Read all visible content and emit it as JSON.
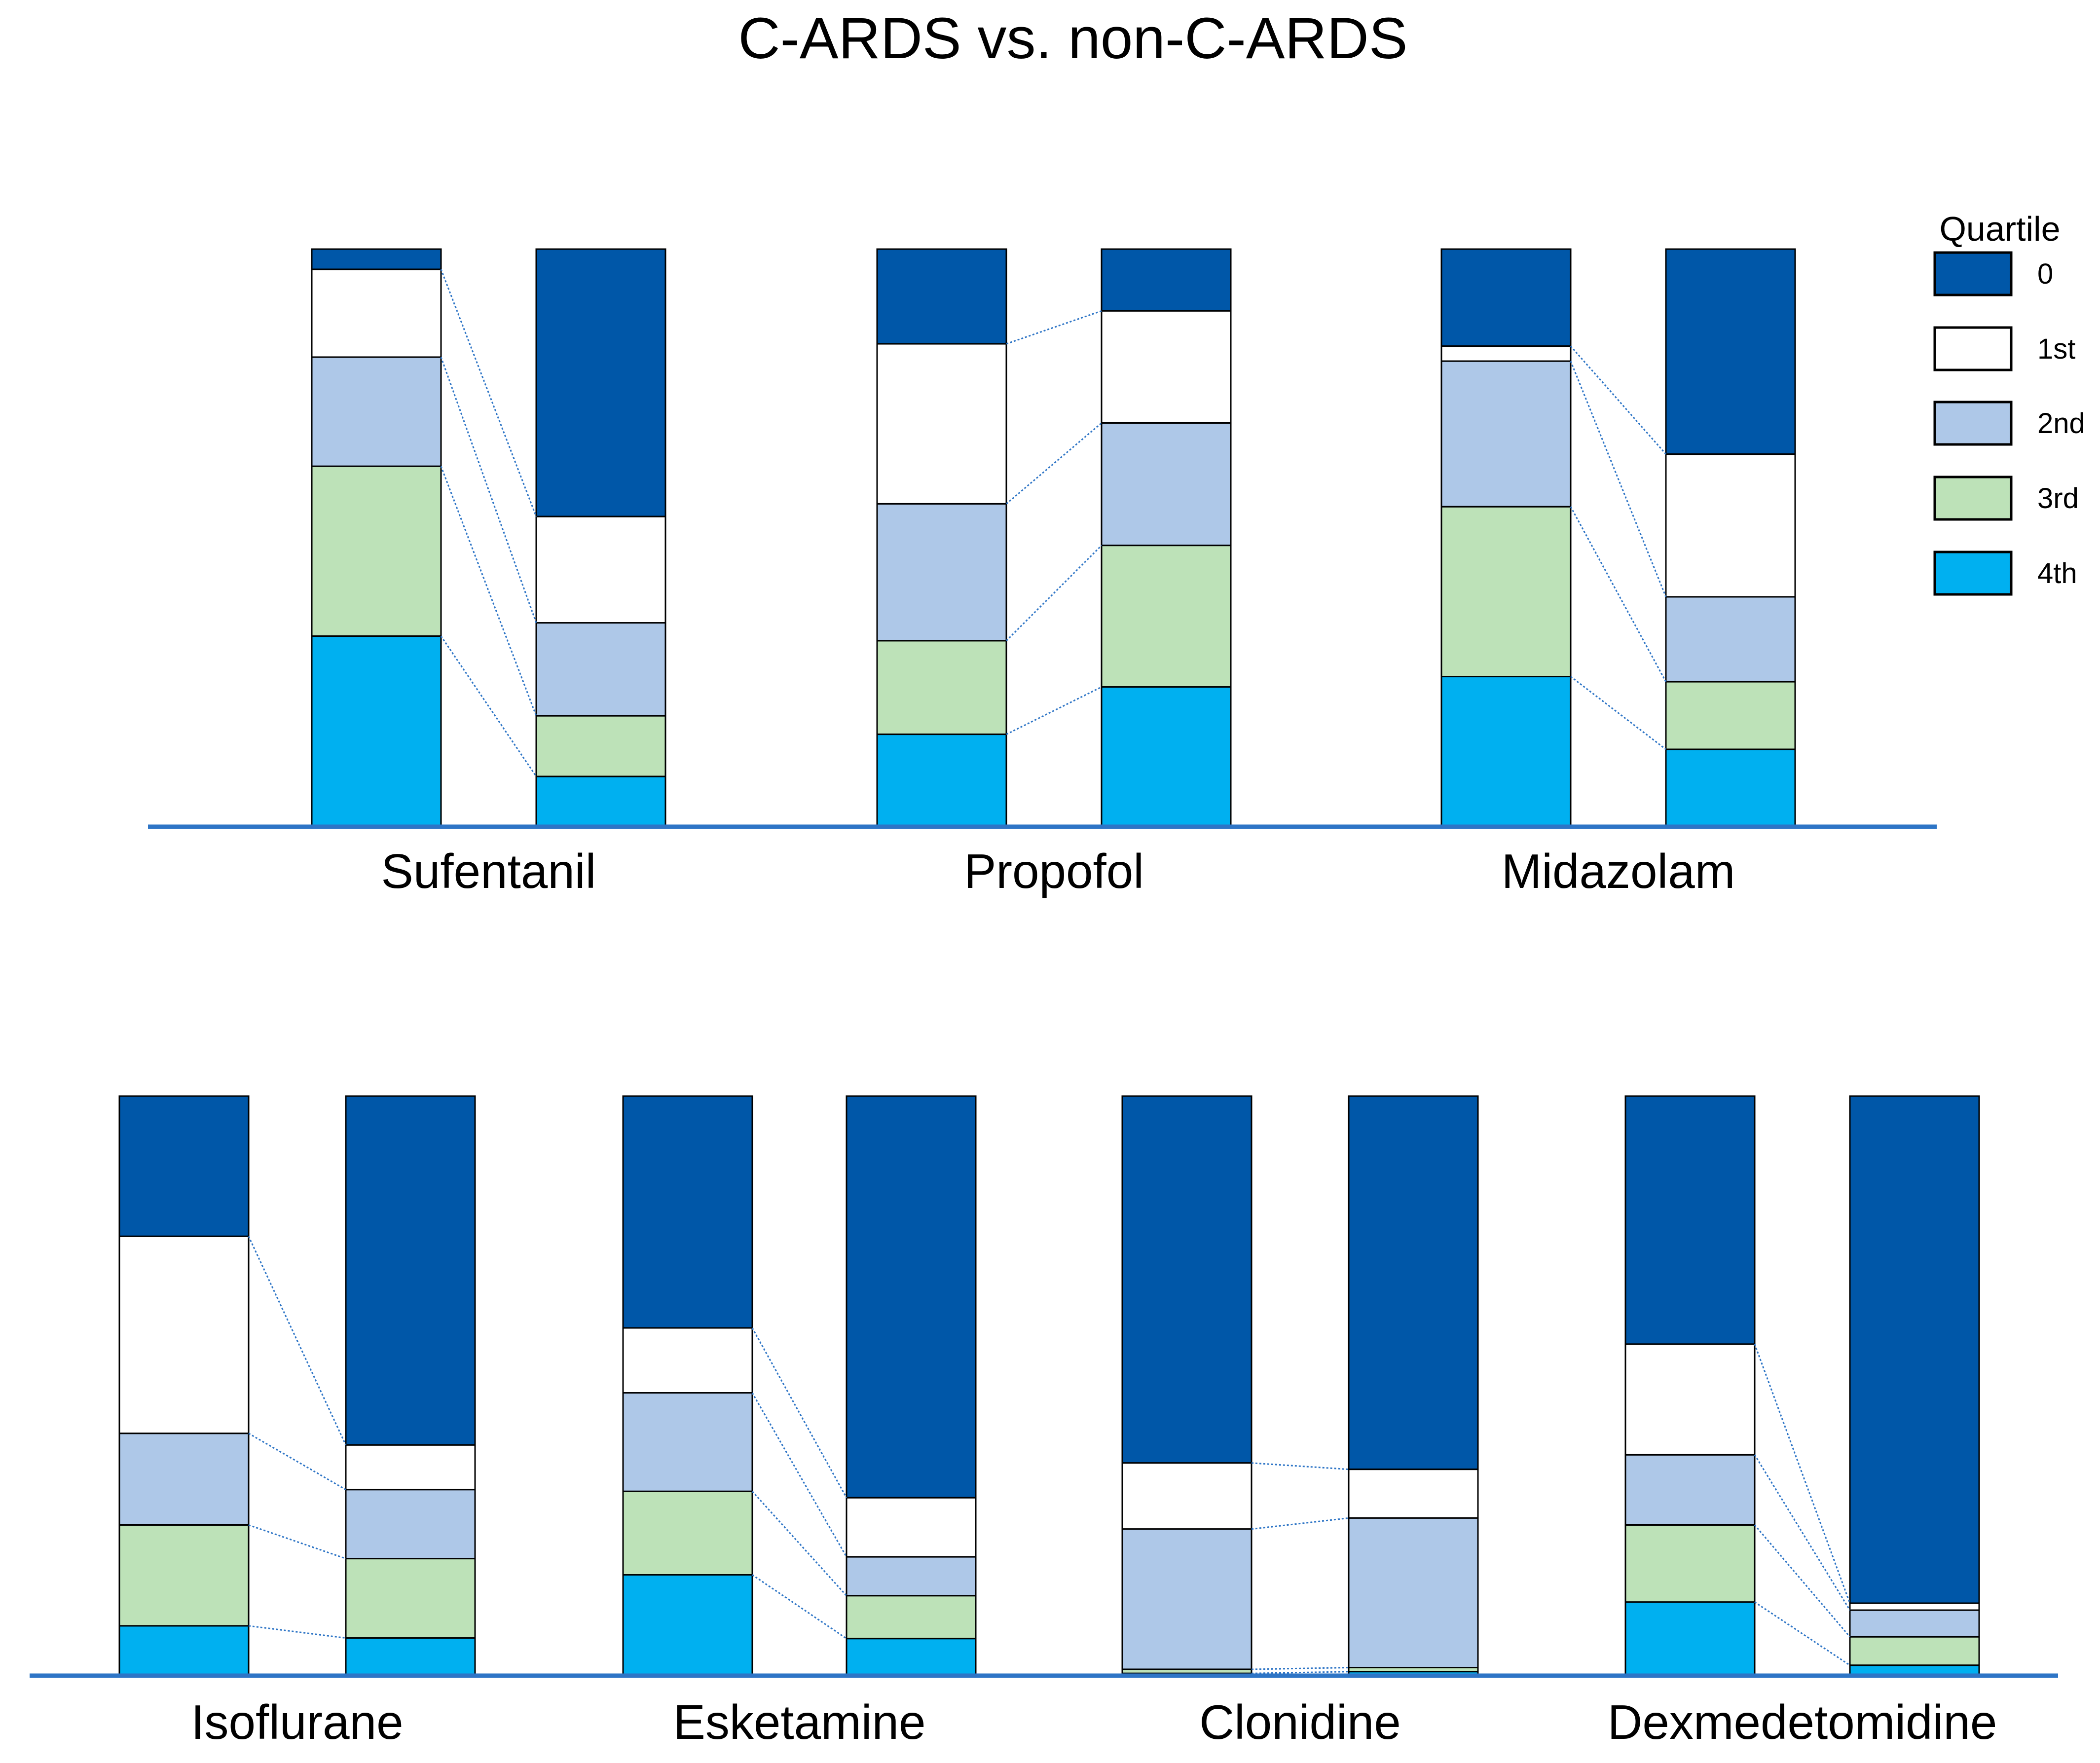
{
  "chart_data": {
    "type": "bar",
    "stacked": true,
    "normalized": true,
    "title": "C-ARDS vs. non-C-ARDS",
    "groups": [
      "C-ARDS",
      "non-C-ARDS"
    ],
    "value_unit": "share of patients per dosage quartile (%)",
    "legend": {
      "title": "Quartile",
      "position": "top-right",
      "entries": [
        "0",
        "1st",
        "2nd",
        "3rd",
        "4th"
      ]
    },
    "colors": {
      "0": "#0057a8",
      "1st": "#ffffff",
      "2nd": "#aec8e8",
      "3rd": "#bde2b8",
      "4th": "#00b0f0",
      "axis": "#2e75c6",
      "connector": "#2e75c6"
    },
    "panels": [
      {
        "row": "top",
        "drugs": [
          {
            "name": "Sufentanil",
            "c_ards": {
              "0": 3.5,
              "1st": 15.2,
              "2nd": 18.9,
              "3rd": 29.4,
              "4th": 33.0
            },
            "non_c_ards": {
              "0": 46.3,
              "1st": 18.4,
              "2nd": 16.1,
              "3rd": 10.5,
              "4th": 8.7
            }
          },
          {
            "name": "Propofol",
            "c_ards": {
              "0": 16.4,
              "1st": 27.7,
              "2nd": 23.7,
              "3rd": 16.2,
              "4th": 16.0
            },
            "non_c_ards": {
              "0": 10.7,
              "1st": 19.4,
              "2nd": 21.2,
              "3rd": 24.5,
              "4th": 24.2
            }
          },
          {
            "name": "Midazolam",
            "c_ards": {
              "0": 16.8,
              "1st": 2.6,
              "2nd": 25.2,
              "3rd": 29.4,
              "4th": 26.0
            },
            "non_c_ards": {
              "0": 35.5,
              "1st": 24.7,
              "2nd": 14.7,
              "3rd": 11.7,
              "4th": 13.4
            }
          }
        ]
      },
      {
        "row": "bottom",
        "drugs": [
          {
            "name": "Isoflurane",
            "c_ards": {
              "0": 24.2,
              "1st": 34.0,
              "2nd": 15.8,
              "3rd": 17.4,
              "4th": 8.6
            },
            "non_c_ards": {
              "0": 60.2,
              "1st": 7.7,
              "2nd": 11.9,
              "3rd": 13.7,
              "4th": 6.5
            }
          },
          {
            "name": "Esketamine",
            "c_ards": {
              "0": 40.0,
              "1st": 11.2,
              "2nd": 17.0,
              "3rd": 14.4,
              "4th": 17.4
            },
            "non_c_ards": {
              "0": 69.3,
              "1st": 10.2,
              "2nd": 6.7,
              "3rd": 7.4,
              "4th": 6.4
            }
          },
          {
            "name": "Clonidine",
            "c_ards": {
              "0": 63.3,
              "1st": 11.4,
              "2nd": 24.2,
              "3rd": 0.7,
              "4th": 0.4
            },
            "non_c_ards": {
              "0": 64.4,
              "1st": 8.4,
              "2nd": 25.8,
              "3rd": 0.7,
              "4th": 0.7
            }
          },
          {
            "name": "Dexmedetomidine",
            "c_ards": {
              "0": 42.8,
              "1st": 19.1,
              "2nd": 12.1,
              "3rd": 13.3,
              "4th": 12.7
            },
            "non_c_ards": {
              "0": 87.5,
              "1st": 1.2,
              "2nd": 4.6,
              "3rd": 4.9,
              "4th": 1.8
            }
          }
        ]
      }
    ]
  }
}
